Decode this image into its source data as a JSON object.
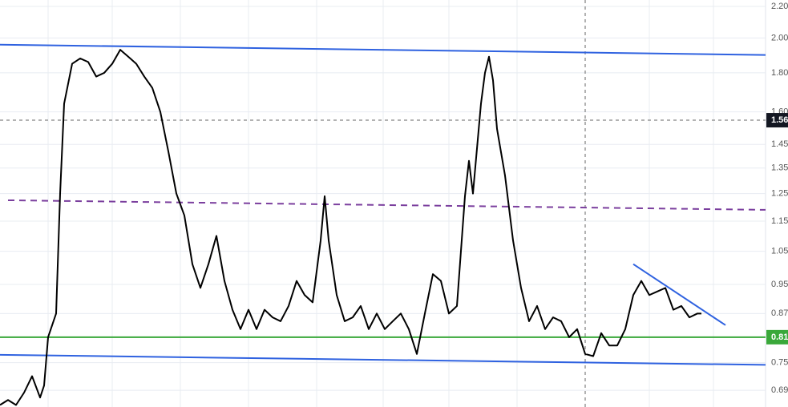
{
  "chart_data": {
    "type": "line",
    "log_scale": true,
    "grid": true,
    "xlim": [
      0,
      191
    ],
    "ylim": [
      0.656,
      2.243
    ],
    "yticks": [
      {
        "value": 2.2,
        "label": "2.20"
      },
      {
        "value": 2.0,
        "label": "2.00"
      },
      {
        "value": 1.8,
        "label": "1.80"
      },
      {
        "value": 1.6,
        "label": "1.60"
      },
      1.45,
      1.35,
      1.25,
      1.15,
      1.05,
      0.95,
      0.87,
      0.75,
      0.69
    ],
    "series": [
      {
        "color": "#000000",
        "x": [
          0,
          2,
          4,
          6,
          8,
          10,
          11,
          12,
          14,
          15,
          16,
          18,
          20,
          22,
          24,
          26,
          28,
          30,
          32,
          34,
          36,
          38,
          40,
          42,
          44,
          46,
          48,
          50,
          52,
          54,
          56,
          58,
          60,
          62,
          64,
          66,
          68,
          70,
          72,
          74,
          76,
          78,
          80,
          81,
          82,
          84,
          86,
          88,
          90,
          92,
          94,
          96,
          98,
          100,
          102,
          104,
          106,
          108,
          110,
          112,
          114,
          116,
          117,
          118,
          120,
          121,
          122,
          123,
          124,
          126,
          128,
          130,
          132,
          134,
          136,
          138,
          140,
          142,
          144,
          146,
          148,
          150,
          152,
          154,
          156,
          158,
          160,
          162,
          164,
          166,
          168,
          170,
          172,
          174,
          175
        ],
        "values": [
          0.66,
          0.67,
          0.66,
          0.685,
          0.72,
          0.675,
          0.7,
          0.81,
          0.87,
          1.25,
          1.64,
          1.85,
          1.88,
          1.86,
          1.78,
          1.8,
          1.85,
          1.93,
          1.89,
          1.85,
          1.78,
          1.72,
          1.6,
          1.42,
          1.25,
          1.17,
          1.01,
          0.94,
          1.01,
          1.1,
          0.96,
          0.88,
          0.83,
          0.88,
          0.83,
          0.88,
          0.86,
          0.85,
          0.89,
          0.96,
          0.92,
          0.9,
          1.085,
          1.24,
          1.085,
          0.92,
          0.85,
          0.86,
          0.89,
          0.83,
          0.87,
          0.83,
          0.85,
          0.87,
          0.83,
          0.77,
          0.87,
          0.98,
          0.96,
          0.87,
          0.89,
          1.24,
          1.38,
          1.25,
          1.64,
          1.8,
          1.89,
          1.76,
          1.52,
          1.32,
          1.085,
          0.94,
          0.85,
          0.89,
          0.83,
          0.86,
          0.85,
          0.81,
          0.83,
          0.77,
          0.765,
          0.82,
          0.79,
          0.79,
          0.83,
          0.92,
          0.96,
          0.92,
          0.93,
          0.94,
          0.88,
          0.89,
          0.86,
          0.87,
          0.87
        ]
      }
    ],
    "lines": [
      {
        "color": "#2f62e0",
        "dash": false,
        "x": [
          0,
          191
        ],
        "values": [
          1.96,
          1.9
        ]
      },
      {
        "color": "#2f62e0",
        "dash": false,
        "x": [
          0,
          191
        ],
        "values": [
          0.768,
          0.745
        ]
      },
      {
        "color": "#7b3f9e",
        "dash": true,
        "x": [
          2,
          191
        ],
        "values": [
          1.225,
          1.19
        ]
      },
      {
        "color": "#2f62e0",
        "dash": false,
        "x": [
          158,
          181
        ],
        "values": [
          1.01,
          0.84
        ]
      }
    ],
    "hlines": [
      {
        "value": 0.81,
        "label": "0.81",
        "color": "#3aa83a",
        "dash": false,
        "tag_color": "#3aa83a"
      },
      {
        "value": 1.56,
        "label": "1.56",
        "color": "#666666",
        "dash": true,
        "tag_color": "#131722"
      }
    ],
    "crosshair_x": 146
  }
}
